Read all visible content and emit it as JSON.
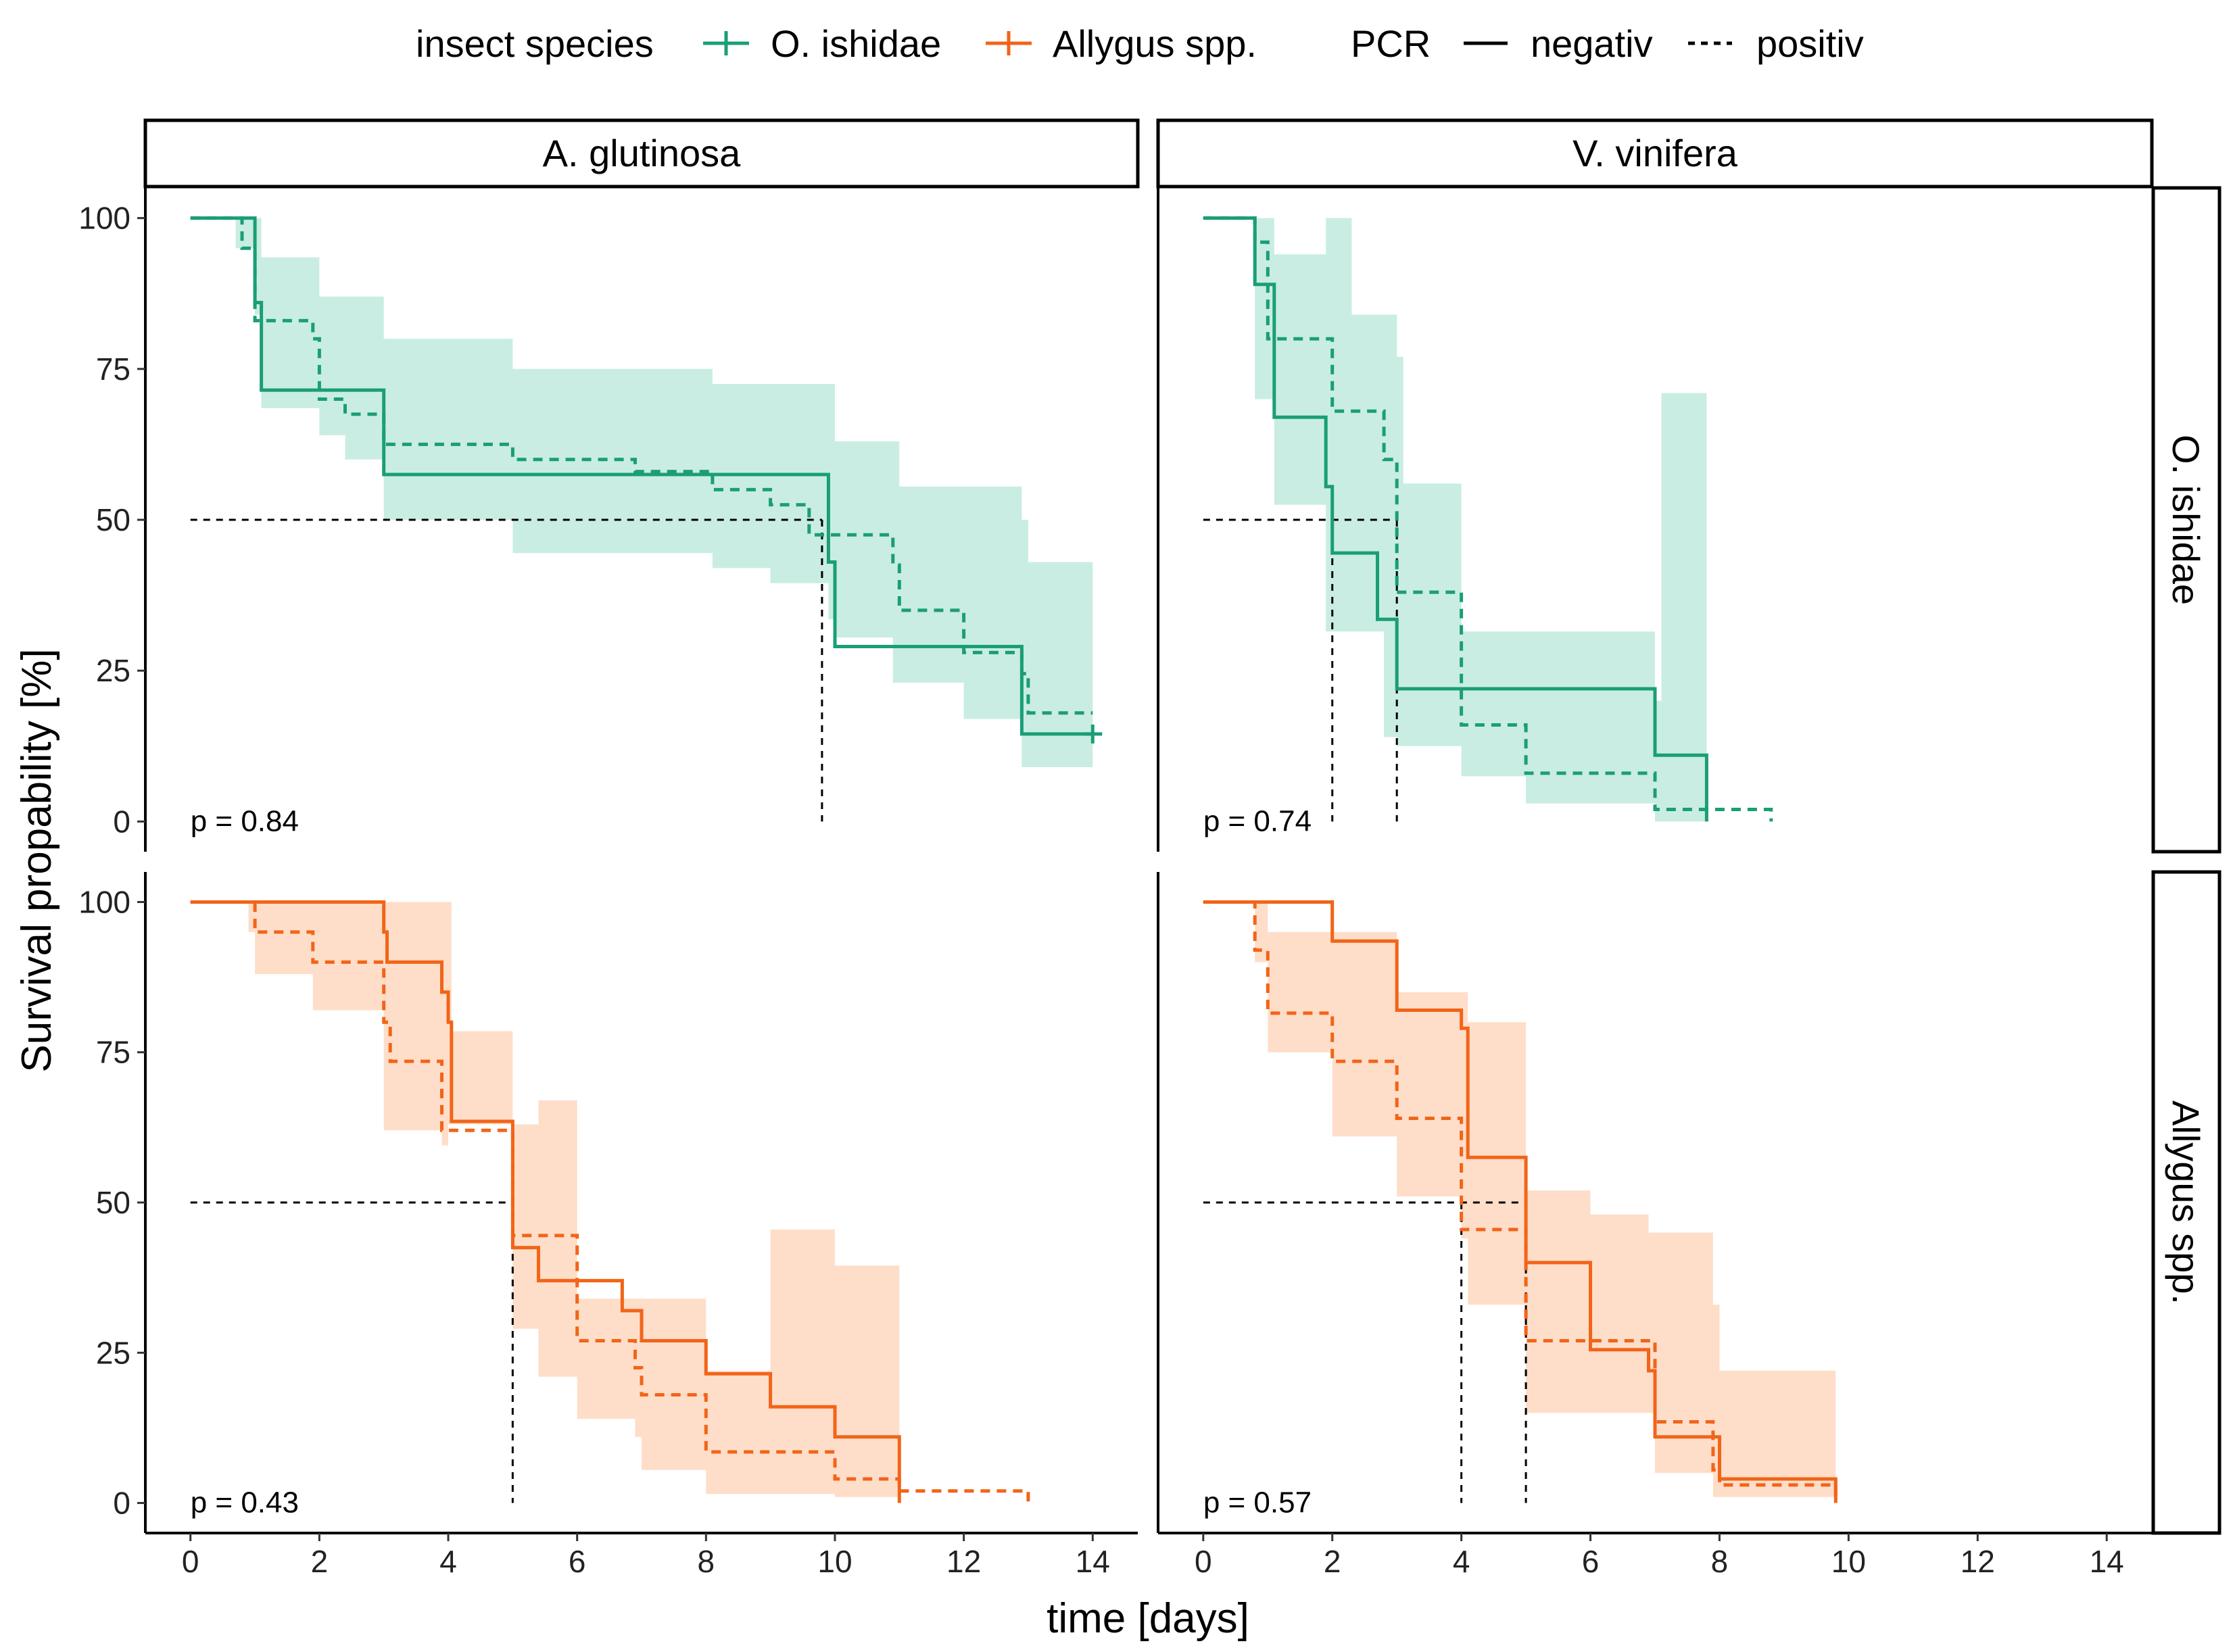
{
  "legend": {
    "species_title": "insect species",
    "species": [
      {
        "name": "O. ishidae",
        "color": "#1a9e77"
      },
      {
        "name": "Allygus spp.",
        "color": "#f26418"
      }
    ],
    "pcr_title": "PCR",
    "pcr": [
      {
        "name": "negativ",
        "linetype": "solid"
      },
      {
        "name": "positiv",
        "linetype": "dashed"
      }
    ]
  },
  "columns": [
    "A. glutinosa",
    "V. vinifera"
  ],
  "rows": [
    "O. ishidae",
    "Allygus spp."
  ],
  "colors": {
    "O. ishidae": "#1a9e77",
    "Allygus spp.": "#f26418",
    "O. ishidae_fill": "#c6ece0",
    "Allygus spp._fill": "#fedcc6"
  },
  "chart_data": {
    "type": "line",
    "title": "",
    "xlabel": "time [days]",
    "ylabel": "Survival propability [%]",
    "xlim": [
      -0.7,
      14.7
    ],
    "ylim": [
      -5,
      105
    ],
    "xticks": [
      0,
      2,
      4,
      6,
      8,
      10,
      12,
      14
    ],
    "yticks": [
      0,
      25,
      50,
      75,
      100
    ],
    "panels": [
      {
        "species": "O. ishidae",
        "plant": "A. glutinosa",
        "p_label": "p = 0.84",
        "median_neg": 9.8,
        "median_pos": 9.8,
        "negativ": [
          [
            0,
            100
          ],
          [
            1,
            100
          ],
          [
            1,
            86
          ],
          [
            1.1,
            86
          ],
          [
            1.1,
            71.5
          ],
          [
            3,
            71.5
          ],
          [
            3,
            57.5
          ],
          [
            9.9,
            57.5
          ],
          [
            9.9,
            43
          ],
          [
            10,
            43
          ],
          [
            10,
            29
          ],
          [
            12.9,
            29
          ],
          [
            12.9,
            14.5
          ],
          [
            14,
            14.5
          ]
        ],
        "positiv": [
          [
            0,
            100
          ],
          [
            0.8,
            100
          ],
          [
            0.8,
            95
          ],
          [
            1,
            95
          ],
          [
            1,
            83
          ],
          [
            1.9,
            83
          ],
          [
            1.9,
            80
          ],
          [
            2,
            80
          ],
          [
            2,
            70
          ],
          [
            2.4,
            70
          ],
          [
            2.4,
            67.5
          ],
          [
            3,
            67.5
          ],
          [
            3,
            62.5
          ],
          [
            5,
            62.5
          ],
          [
            5,
            60
          ],
          [
            6.9,
            60
          ],
          [
            6.9,
            58
          ],
          [
            8.1,
            58
          ],
          [
            8.1,
            55
          ],
          [
            9,
            55
          ],
          [
            9,
            52.5
          ],
          [
            9.6,
            52.5
          ],
          [
            9.6,
            47.5
          ],
          [
            10.9,
            47.5
          ],
          [
            10.9,
            42.5
          ],
          [
            11,
            42.5
          ],
          [
            11,
            35
          ],
          [
            12,
            35
          ],
          [
            12,
            28
          ],
          [
            12.9,
            28
          ],
          [
            12.9,
            24.5
          ],
          [
            13,
            24.5
          ],
          [
            13,
            18
          ],
          [
            14,
            18
          ]
        ],
        "ci": [
          [
            0.7,
            95,
            100
          ],
          [
            1,
            84,
            100
          ],
          [
            1.1,
            68.5,
            93.5
          ],
          [
            2,
            66,
            93.5
          ],
          [
            2,
            64,
            87
          ],
          [
            2.4,
            60,
            87
          ],
          [
            3,
            50,
            80
          ],
          [
            5,
            48,
            80
          ],
          [
            5,
            44.5,
            75
          ],
          [
            8.1,
            42,
            72.5
          ],
          [
            9,
            39.5,
            72.5
          ],
          [
            9.9,
            33.5,
            72.5
          ],
          [
            10,
            30.5,
            63
          ],
          [
            10.9,
            23,
            63
          ],
          [
            11,
            23,
            55.5
          ],
          [
            12,
            17,
            55.5
          ],
          [
            12.9,
            9,
            50
          ],
          [
            13,
            9,
            43
          ],
          [
            14,
            9,
            35
          ]
        ]
      },
      {
        "species": "O. ishidae",
        "plant": "V. vinifera",
        "p_label": "p = 0.74",
        "median_neg": 2.0,
        "median_pos": 3.0,
        "negativ": [
          [
            0,
            100
          ],
          [
            0.8,
            100
          ],
          [
            0.8,
            89
          ],
          [
            1.1,
            89
          ],
          [
            1.1,
            67
          ],
          [
            1.9,
            67
          ],
          [
            1.9,
            55.5
          ],
          [
            2,
            55.5
          ],
          [
            2,
            44.5
          ],
          [
            2.7,
            44.5
          ],
          [
            2.7,
            33.5
          ],
          [
            3,
            33.5
          ],
          [
            3,
            22
          ],
          [
            7,
            22
          ],
          [
            7,
            11
          ],
          [
            7.8,
            11
          ],
          [
            7.8,
            0
          ]
        ],
        "positiv": [
          [
            0,
            100
          ],
          [
            0.8,
            100
          ],
          [
            0.8,
            96
          ],
          [
            1,
            96
          ],
          [
            1,
            80
          ],
          [
            2,
            80
          ],
          [
            2,
            68
          ],
          [
            2.8,
            68
          ],
          [
            2.8,
            60
          ],
          [
            3,
            60
          ],
          [
            3,
            38
          ],
          [
            4,
            38
          ],
          [
            4,
            16
          ],
          [
            5,
            16
          ],
          [
            5,
            8
          ],
          [
            7,
            8
          ],
          [
            7,
            2
          ],
          [
            8.8,
            2
          ],
          [
            8.8,
            0
          ]
        ],
        "ci": [
          [
            0.8,
            70,
            100
          ],
          [
            1.1,
            52.5,
            94
          ],
          [
            1.9,
            31.5,
            100
          ],
          [
            2.3,
            31.5,
            84
          ],
          [
            2.8,
            14,
            84
          ],
          [
            3,
            12.5,
            77
          ],
          [
            3.1,
            12.5,
            56
          ],
          [
            4,
            7.5,
            56
          ],
          [
            4,
            7.5,
            31.5
          ],
          [
            5,
            3,
            31.5
          ],
          [
            7,
            0,
            20
          ],
          [
            7.1,
            0,
            71
          ],
          [
            7.8,
            0,
            71
          ]
        ]
      },
      {
        "species": "Allygus spp.",
        "plant": "A. glutinosa",
        "p_label": "p = 0.43",
        "median_neg": 5.0,
        "median_pos": 5.0,
        "negativ": [
          [
            0,
            100
          ],
          [
            3,
            100
          ],
          [
            3,
            95
          ],
          [
            3.05,
            95
          ],
          [
            3.05,
            90
          ],
          [
            3.9,
            90
          ],
          [
            3.9,
            85
          ],
          [
            4,
            85
          ],
          [
            4,
            80
          ],
          [
            4.05,
            80
          ],
          [
            4.05,
            63.5
          ],
          [
            5,
            63.5
          ],
          [
            5,
            42.5
          ],
          [
            5.4,
            42.5
          ],
          [
            5.4,
            37
          ],
          [
            6.7,
            37
          ],
          [
            6.7,
            32
          ],
          [
            7,
            32
          ],
          [
            7,
            27
          ],
          [
            8,
            27
          ],
          [
            8,
            21.5
          ],
          [
            9,
            21.5
          ],
          [
            9,
            16
          ],
          [
            10,
            16
          ],
          [
            10,
            11
          ],
          [
            11,
            11
          ],
          [
            11,
            0
          ]
        ],
        "positiv": [
          [
            0,
            100
          ],
          [
            1,
            100
          ],
          [
            1,
            95
          ],
          [
            1.9,
            95
          ],
          [
            1.9,
            90
          ],
          [
            3,
            90
          ],
          [
            3,
            80
          ],
          [
            3.1,
            80
          ],
          [
            3.1,
            73.5
          ],
          [
            3.9,
            73.5
          ],
          [
            3.9,
            62
          ],
          [
            5,
            62
          ],
          [
            5,
            44.5
          ],
          [
            6,
            44.5
          ],
          [
            6,
            27
          ],
          [
            6.9,
            27
          ],
          [
            6.9,
            22.5
          ],
          [
            7,
            22.5
          ],
          [
            7,
            18
          ],
          [
            8,
            18
          ],
          [
            8,
            8.5
          ],
          [
            10,
            8.5
          ],
          [
            10,
            4
          ],
          [
            11,
            4
          ],
          [
            11,
            2
          ],
          [
            13,
            2
          ],
          [
            13,
            0
          ]
        ],
        "ci": [
          [
            0.9,
            95,
            100
          ],
          [
            1,
            88,
            100
          ],
          [
            1.9,
            82,
            100
          ],
          [
            3,
            62,
            100
          ],
          [
            3.9,
            59.5,
            100
          ],
          [
            4,
            63,
            100
          ],
          [
            4.05,
            63,
            78.5
          ],
          [
            5,
            49,
            78.5
          ],
          [
            5,
            29,
            63
          ],
          [
            5.4,
            21,
            67
          ],
          [
            6,
            21,
            58
          ],
          [
            6,
            14,
            34
          ],
          [
            6.9,
            11,
            34
          ],
          [
            7,
            5.5,
            34
          ],
          [
            8,
            5.5,
            34
          ],
          [
            8,
            1.5,
            22
          ],
          [
            9,
            1.5,
            45.5
          ],
          [
            10,
            1,
            45.5
          ],
          [
            10,
            1,
            39.5
          ],
          [
            11,
            1,
            39.5
          ],
          [
            11,
            1,
            22
          ]
        ]
      },
      {
        "species": "Allygus spp.",
        "plant": "V. vinifera",
        "p_label": "p = 0.57",
        "median_neg": 5.0,
        "median_pos": 4.0,
        "negativ": [
          [
            0,
            100
          ],
          [
            2,
            100
          ],
          [
            2,
            93.5
          ],
          [
            3,
            93.5
          ],
          [
            3,
            82
          ],
          [
            4,
            82
          ],
          [
            4,
            79
          ],
          [
            4.1,
            79
          ],
          [
            4.1,
            57.5
          ],
          [
            5,
            57.5
          ],
          [
            5,
            40
          ],
          [
            6,
            40
          ],
          [
            6,
            25.5
          ],
          [
            6.9,
            25.5
          ],
          [
            6.9,
            22
          ],
          [
            7,
            22
          ],
          [
            7,
            11
          ],
          [
            8,
            11
          ],
          [
            8,
            4
          ],
          [
            9.8,
            4
          ],
          [
            9.8,
            0
          ]
        ],
        "positiv": [
          [
            0,
            100
          ],
          [
            0.8,
            100
          ],
          [
            0.8,
            92
          ],
          [
            1,
            92
          ],
          [
            1,
            81.5
          ],
          [
            2,
            81.5
          ],
          [
            2,
            73.5
          ],
          [
            3,
            73.5
          ],
          [
            3,
            64
          ],
          [
            4,
            64
          ],
          [
            4,
            45.5
          ],
          [
            5,
            45.5
          ],
          [
            5,
            27
          ],
          [
            7,
            27
          ],
          [
            7,
            13.5
          ],
          [
            7.9,
            13.5
          ],
          [
            7.9,
            5.5
          ],
          [
            8,
            5.5
          ],
          [
            8,
            3
          ],
          [
            9.8,
            3
          ],
          [
            9.8,
            0
          ]
        ],
        "ci": [
          [
            0.8,
            90,
            100
          ],
          [
            1,
            75,
            95
          ],
          [
            2,
            61,
            95
          ],
          [
            3,
            51,
            85
          ],
          [
            4,
            44,
            85
          ],
          [
            4.1,
            33,
            80
          ],
          [
            5,
            16,
            67
          ],
          [
            5,
            15,
            52
          ],
          [
            6,
            15,
            48
          ],
          [
            6.9,
            15,
            45
          ],
          [
            7,
            5,
            45
          ],
          [
            7.9,
            1,
            33
          ],
          [
            8,
            1,
            22
          ],
          [
            9.8,
            1,
            18.5
          ]
        ]
      }
    ]
  }
}
